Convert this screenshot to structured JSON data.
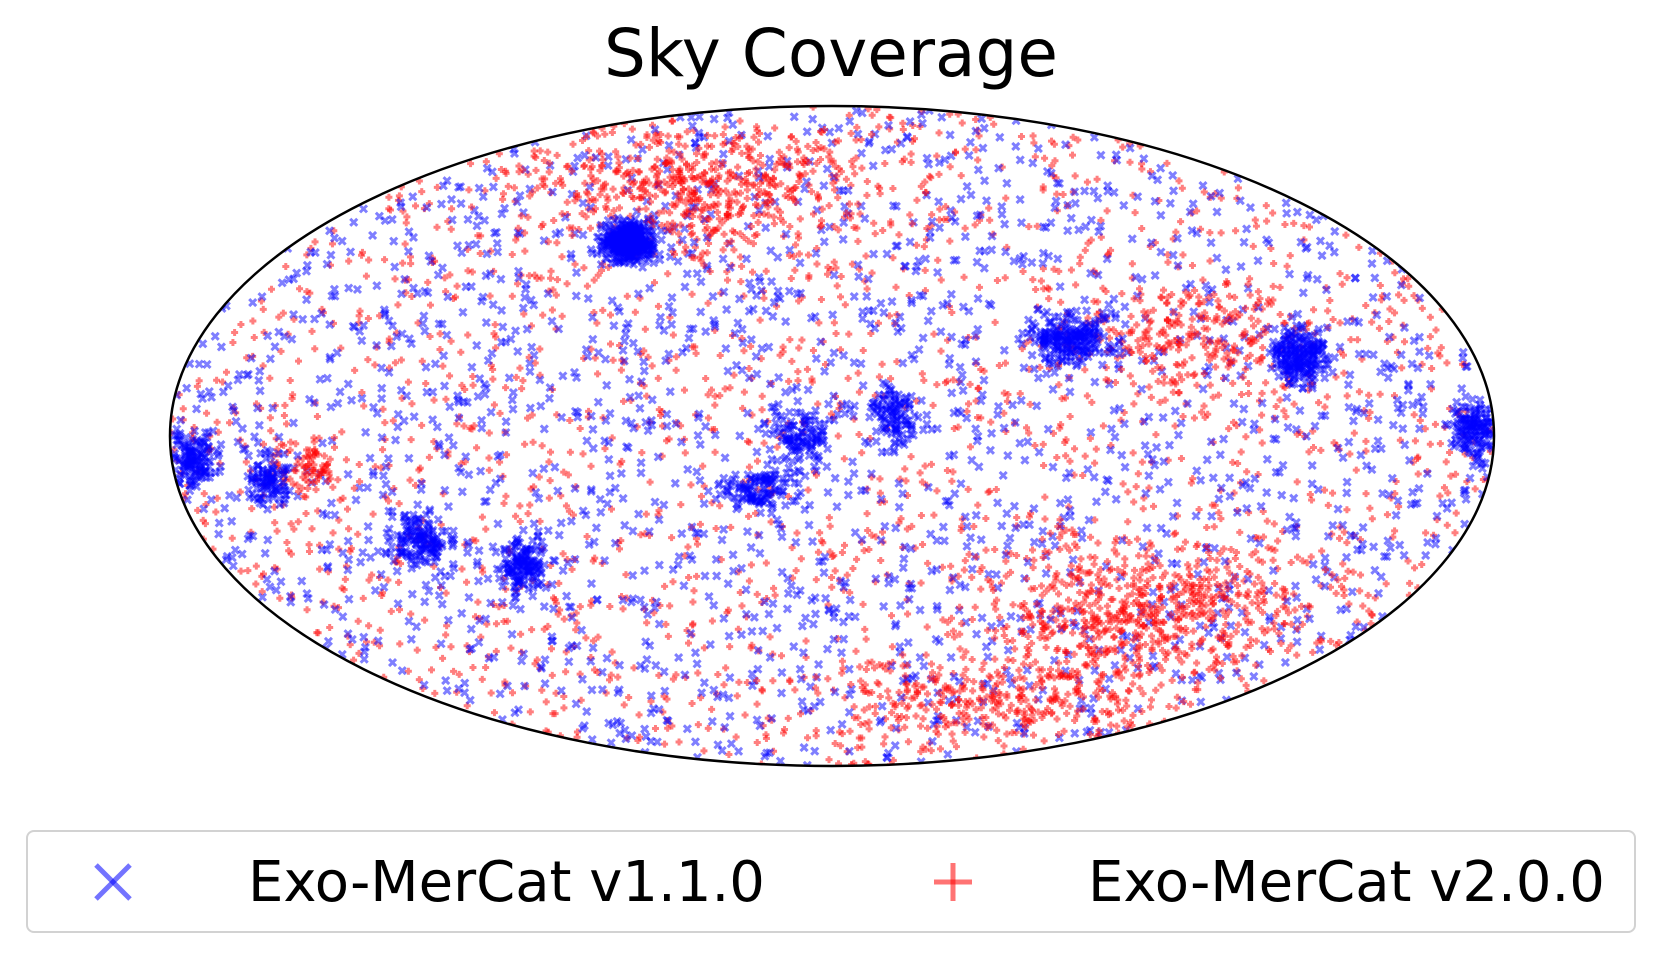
{
  "chart_data": {
    "type": "scatter",
    "projection": "mollweide",
    "title": "Sky Coverage",
    "grid": false,
    "legend_placement": "below",
    "series": [
      {
        "name": "Exo-MerCat v1.1.0",
        "marker": "x",
        "color": "#0000ff",
        "alpha": 0.5
      },
      {
        "name": "Exo-MerCat v2.0.0",
        "marker": "+",
        "color": "#ff0000",
        "alpha": 0.5
      }
    ]
  }
}
